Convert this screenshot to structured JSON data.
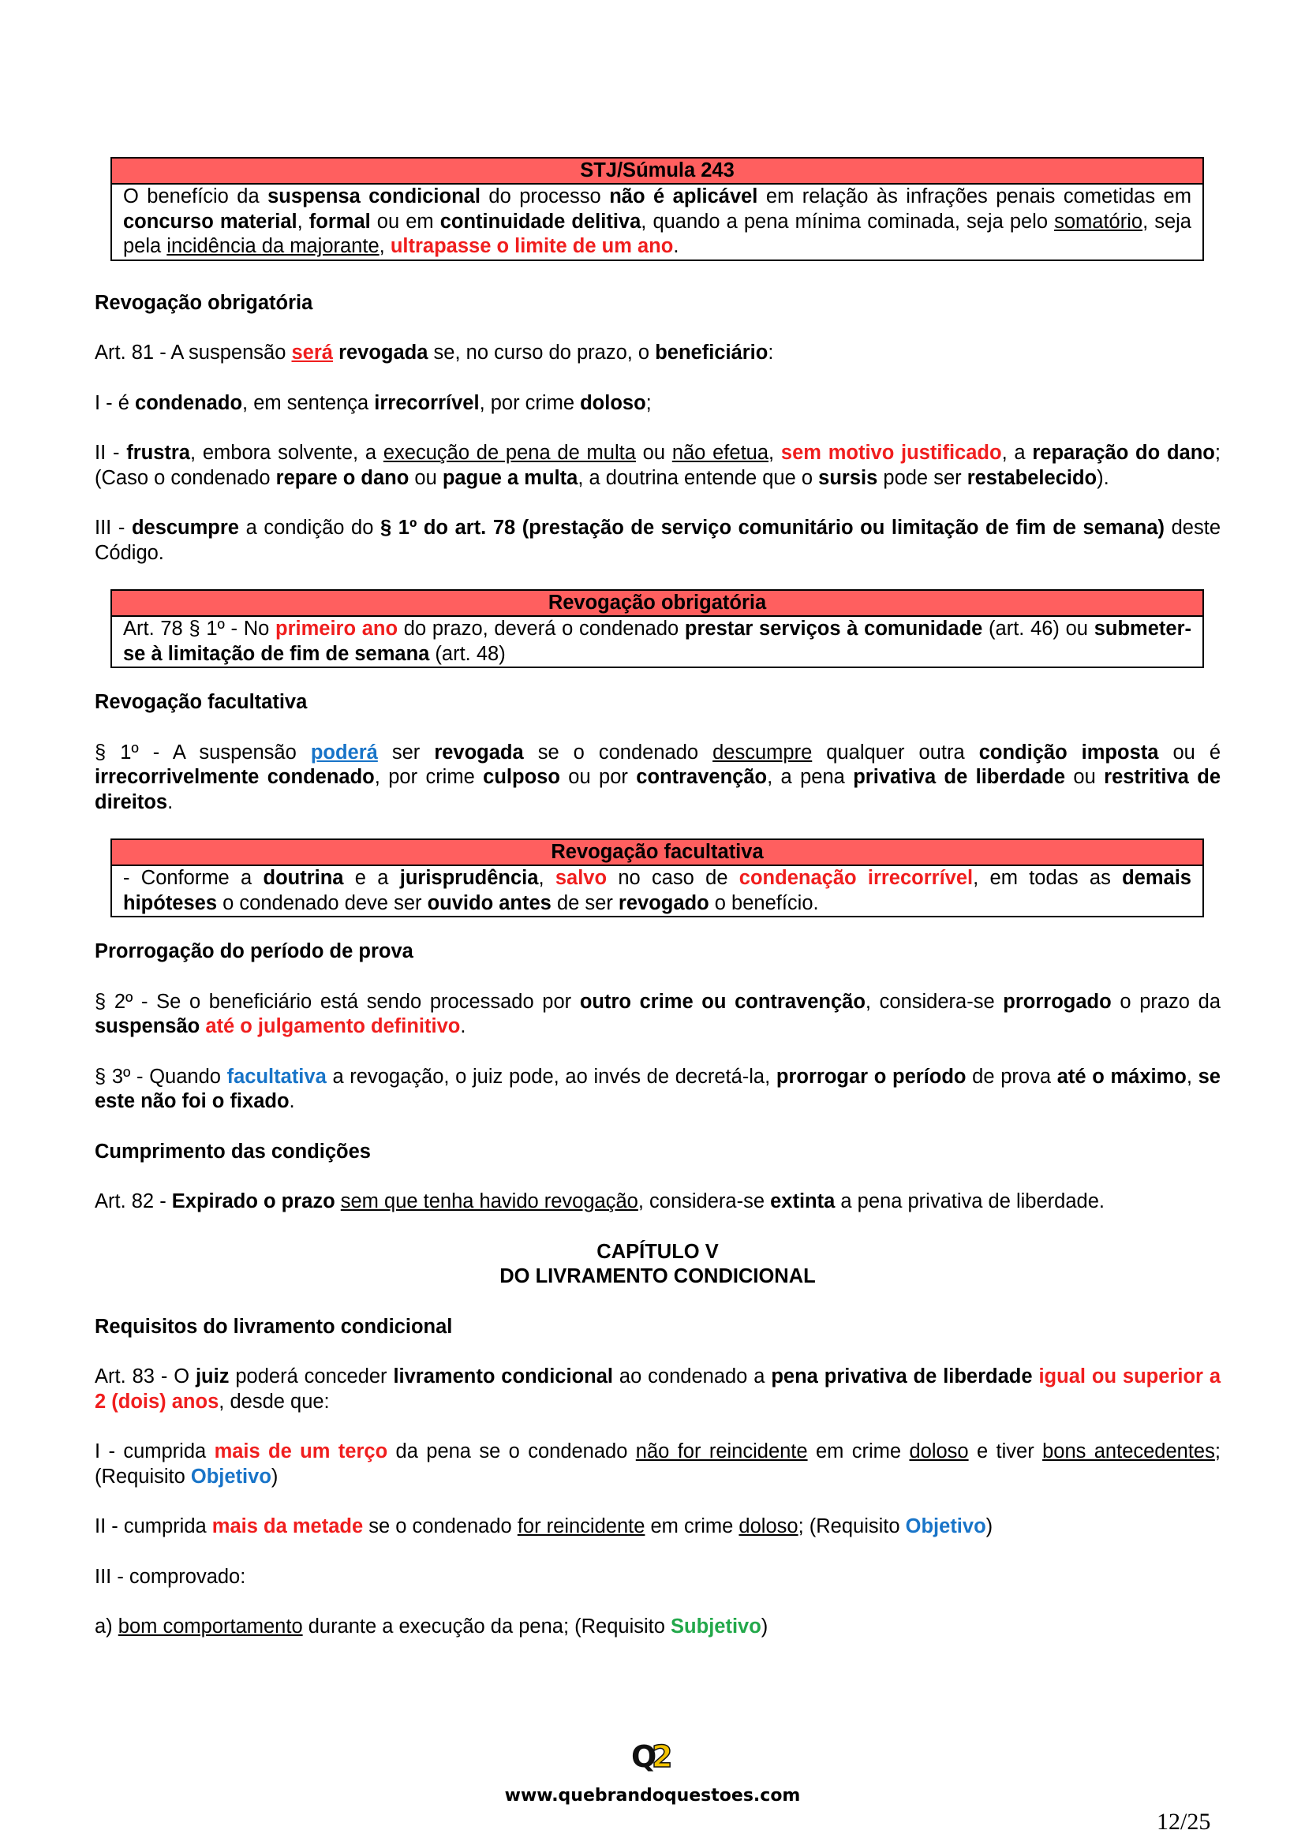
{
  "box1": {
    "title": "STJ/Súmula 243",
    "t1": "O benefício da ",
    "b1": "suspensa condicional",
    "t2": " do processo ",
    "b2": "não é aplicável",
    "t3": " em relação às infrações penais cometidas em ",
    "b3": "concurso material",
    "t4": ", ",
    "b4": "formal",
    "t5": " ou em ",
    "b5": "continuidade delitiva",
    "t6": ", quando a pena mínima cominada, seja pelo ",
    "u1": "somatório",
    "t7": ", seja pela ",
    "u2": "incidência da majorante",
    "t8": ", ",
    "r1": "ultrapasse o limite de um ano",
    "t9": "."
  },
  "h_revog_obrig": "Revogação obrigatória",
  "art81": {
    "t1": "Art. 81 - A suspensão ",
    "r1": "será",
    "t2": " ",
    "b1": "revogada",
    "t3": " se, no curso do prazo, o ",
    "b2": "beneficiário",
    "t4": ":"
  },
  "inc1": {
    "t1": "I - é ",
    "b1": "condenado",
    "t2": ", em sentença ",
    "b2": "irrecorrível",
    "t3": ", por crime ",
    "b3": "doloso",
    "t4": ";"
  },
  "inc2": {
    "t1": "II - ",
    "b1": "frustra",
    "t2": ", embora solvente, a ",
    "u1": "execução de pena de multa",
    "t3": " ou ",
    "u2": "não efetua",
    "t4": ", ",
    "r1": "sem motivo justificado",
    "t5": ", a ",
    "b2": "reparação do dano",
    "t6": "; (Caso o condenado ",
    "b3": "repare o dano",
    "t7": " ou ",
    "b4": "pague a multa",
    "t8": ", a doutrina entende que o ",
    "b5": "sursis",
    "t9": " pode ser ",
    "b6": "restabelecido",
    "t10": ")."
  },
  "inc3": {
    "t1": "III - ",
    "b1": "descumpre",
    "t2": " a condição do ",
    "b2": "§ 1º do art. 78 (prestação de serviço comunitário ou limitação de fim de semana)",
    "t3": " deste Código."
  },
  "box2": {
    "title": "Revogação obrigatória",
    "t1": "Art. 78 § 1º - No ",
    "r1": "primeiro ano",
    "t2": " do prazo, deverá o condenado ",
    "b1": "prestar serviços à comunidade",
    "t3": " (art. 46) ou ",
    "b2": "submeter-se à limitação de fim de semana",
    "t4": " (art. 48)"
  },
  "h_revog_facult": "Revogação facultativa",
  "par1": {
    "t1": "§ 1º - A suspensão ",
    "bl1": "poderá",
    "t2": " ser ",
    "b1": "revogada",
    "t3": " se o condenado ",
    "u1": "descumpre",
    "t4": " qualquer outra ",
    "b2": "condição imposta",
    "t5": " ou é ",
    "b3": "irrecorrivelmente condenado",
    "t6": ", por crime ",
    "b4": "culposo",
    "t7": " ou por ",
    "b5": "contravenção",
    "t8": ", a pena ",
    "b6": "privativa de liberdade",
    "t9": " ou ",
    "b7": "restritiva de direitos",
    "t10": "."
  },
  "box3": {
    "title": "Revogação facultativa",
    "t1": "- Conforme a ",
    "b1": "doutrina",
    "t2": " e a ",
    "b2": "jurisprudência",
    "t3": ", ",
    "r1": "salvo",
    "t4": " no caso de ",
    "r2": "condenação irrecorrível",
    "t5": ", em todas as ",
    "b3": "demais hipóteses",
    "t6": " o condenado deve ser ",
    "b4": "ouvido antes",
    "t7": " de ser ",
    "b5": "revogado",
    "t8": " o benefício."
  },
  "h_prorrog": "Prorrogação do período de prova",
  "par2": {
    "t1": "§ 2º - Se o beneficiário está sendo processado por ",
    "b1": "outro crime ou contravenção",
    "t2": ", considera-se ",
    "b2": "prorrogado",
    "t3": " o prazo da ",
    "b3": "suspensão",
    "t4": " ",
    "r1": "até o julgamento definitivo",
    "t5": "."
  },
  "par3": {
    "t1": "§ 3º - Quando ",
    "bl1": "facultativa",
    "t2": " a revogação, o juiz pode, ao invés de decretá-la, ",
    "b1": "prorrogar o período",
    "t3": " de prova ",
    "b2": "até o máximo",
    "t4": ", ",
    "b3": "se este não foi o fixado",
    "t5": "."
  },
  "h_cumprimento": "Cumprimento das condições",
  "art82": {
    "t1": "Art. 82 - ",
    "b1": "Expirado o prazo",
    "t2": " ",
    "u1": "sem que tenha havido revogação",
    "t3": ", considera-se ",
    "b2": "extinta",
    "t4": " a pena privativa de liberdade."
  },
  "chapter": {
    "line1": "CAPÍTULO V",
    "line2": "DO LIVRAMENTO CONDICIONAL"
  },
  "h_requisitos": "Requisitos do livramento condicional",
  "art83": {
    "t1": "Art. 83 - O ",
    "b1": "juiz",
    "t2": " poderá conceder ",
    "b2": "livramento condicional",
    "t3": " ao condenado a ",
    "b3": "pena privativa de liberdade",
    "t4": " ",
    "r1": "igual ou superior a 2 (dois) anos",
    "t5": ", desde que:"
  },
  "req1": {
    "t1": "I - cumprida ",
    "r1": "mais de um terço",
    "t2": " da pena se o condenado ",
    "u1": "não for reincidente",
    "t3": " em crime ",
    "u2": "doloso",
    "t4": " e tiver ",
    "u3": "bons antecedentes",
    "t5": "; (Requisito ",
    "bl1": "Objetivo",
    "t6": ")"
  },
  "req2": {
    "t1": "II - cumprida ",
    "r1": "mais da metade",
    "t2": " se o condenado ",
    "u1": "for reincidente",
    "t3": " em crime ",
    "u2": "doloso",
    "t4": "; (Requisito ",
    "bl1": "Objetivo",
    "t5": ")"
  },
  "req3": {
    "t1": "III - comprovado:"
  },
  "reqa": {
    "t1": "a) ",
    "u1": "bom comportamento",
    "t2": " durante a execução da pena; (Requisito ",
    "g1": "Subjetivo",
    "t3": ")"
  },
  "footer": {
    "logo_q": "Q",
    "logo_2": "2",
    "url": "www.quebrandoquestoes.com",
    "page": "12/25",
    "colors": {
      "logo_q": "#111111",
      "logo_2": "#f2c200"
    }
  }
}
